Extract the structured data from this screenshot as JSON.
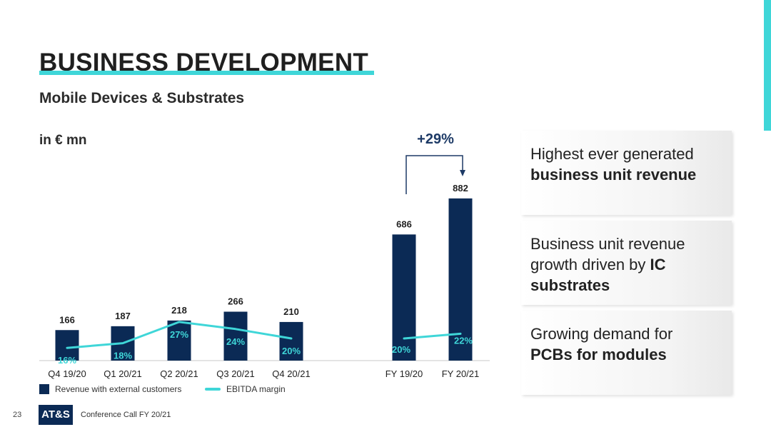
{
  "page": {
    "title": "BUSINESS DEVELOPMENT",
    "subtitle": "Mobile Devices & Substrates",
    "unit": "in € mn",
    "growth_label": "+29%"
  },
  "colors": {
    "accent": "#3fd6d8",
    "navy": "#0b2a55",
    "arrow": "#1d3a66"
  },
  "chart_data": {
    "type": "bar",
    "categories": [
      "Q4 19/20",
      "Q1 20/21",
      "Q2 20/21",
      "Q3 20/21",
      "Q4 20/21",
      "FY 19/20",
      "FY 20/21"
    ],
    "series": [
      {
        "name": "Revenue with external customers",
        "type": "bar",
        "values": [
          166,
          187,
          218,
          266,
          210,
          686,
          882
        ]
      },
      {
        "name": "EBITDA margin",
        "type": "line",
        "unit": "%",
        "values": [
          16,
          18,
          27,
          24,
          20,
          20,
          22
        ]
      }
    ],
    "data_labels": {
      "bars": [
        "166",
        "187",
        "218",
        "266",
        "210",
        "686",
        "882"
      ],
      "line": [
        "16%",
        "18%",
        "27%",
        "24%",
        "20%",
        "20%",
        "22%"
      ]
    },
    "line_groups": [
      [
        0,
        1,
        2,
        3,
        4
      ],
      [
        5,
        6
      ]
    ],
    "annotation": {
      "text": "+29%",
      "from": "FY 19/20",
      "to": "FY 20/21"
    },
    "legend_position": "bottom-left",
    "grid": false
  },
  "panels": [
    {
      "normal": "Highest ever generated",
      "bold": "business unit revenue"
    },
    {
      "normal": "Business unit revenue growth driven by",
      "bold": "IC substrates"
    },
    {
      "normal": "Growing demand for",
      "bold": "PCBs for modules"
    }
  ],
  "footer": {
    "page_number": "23",
    "logo": "AT&S",
    "text": "Conference Call FY 20/21"
  }
}
